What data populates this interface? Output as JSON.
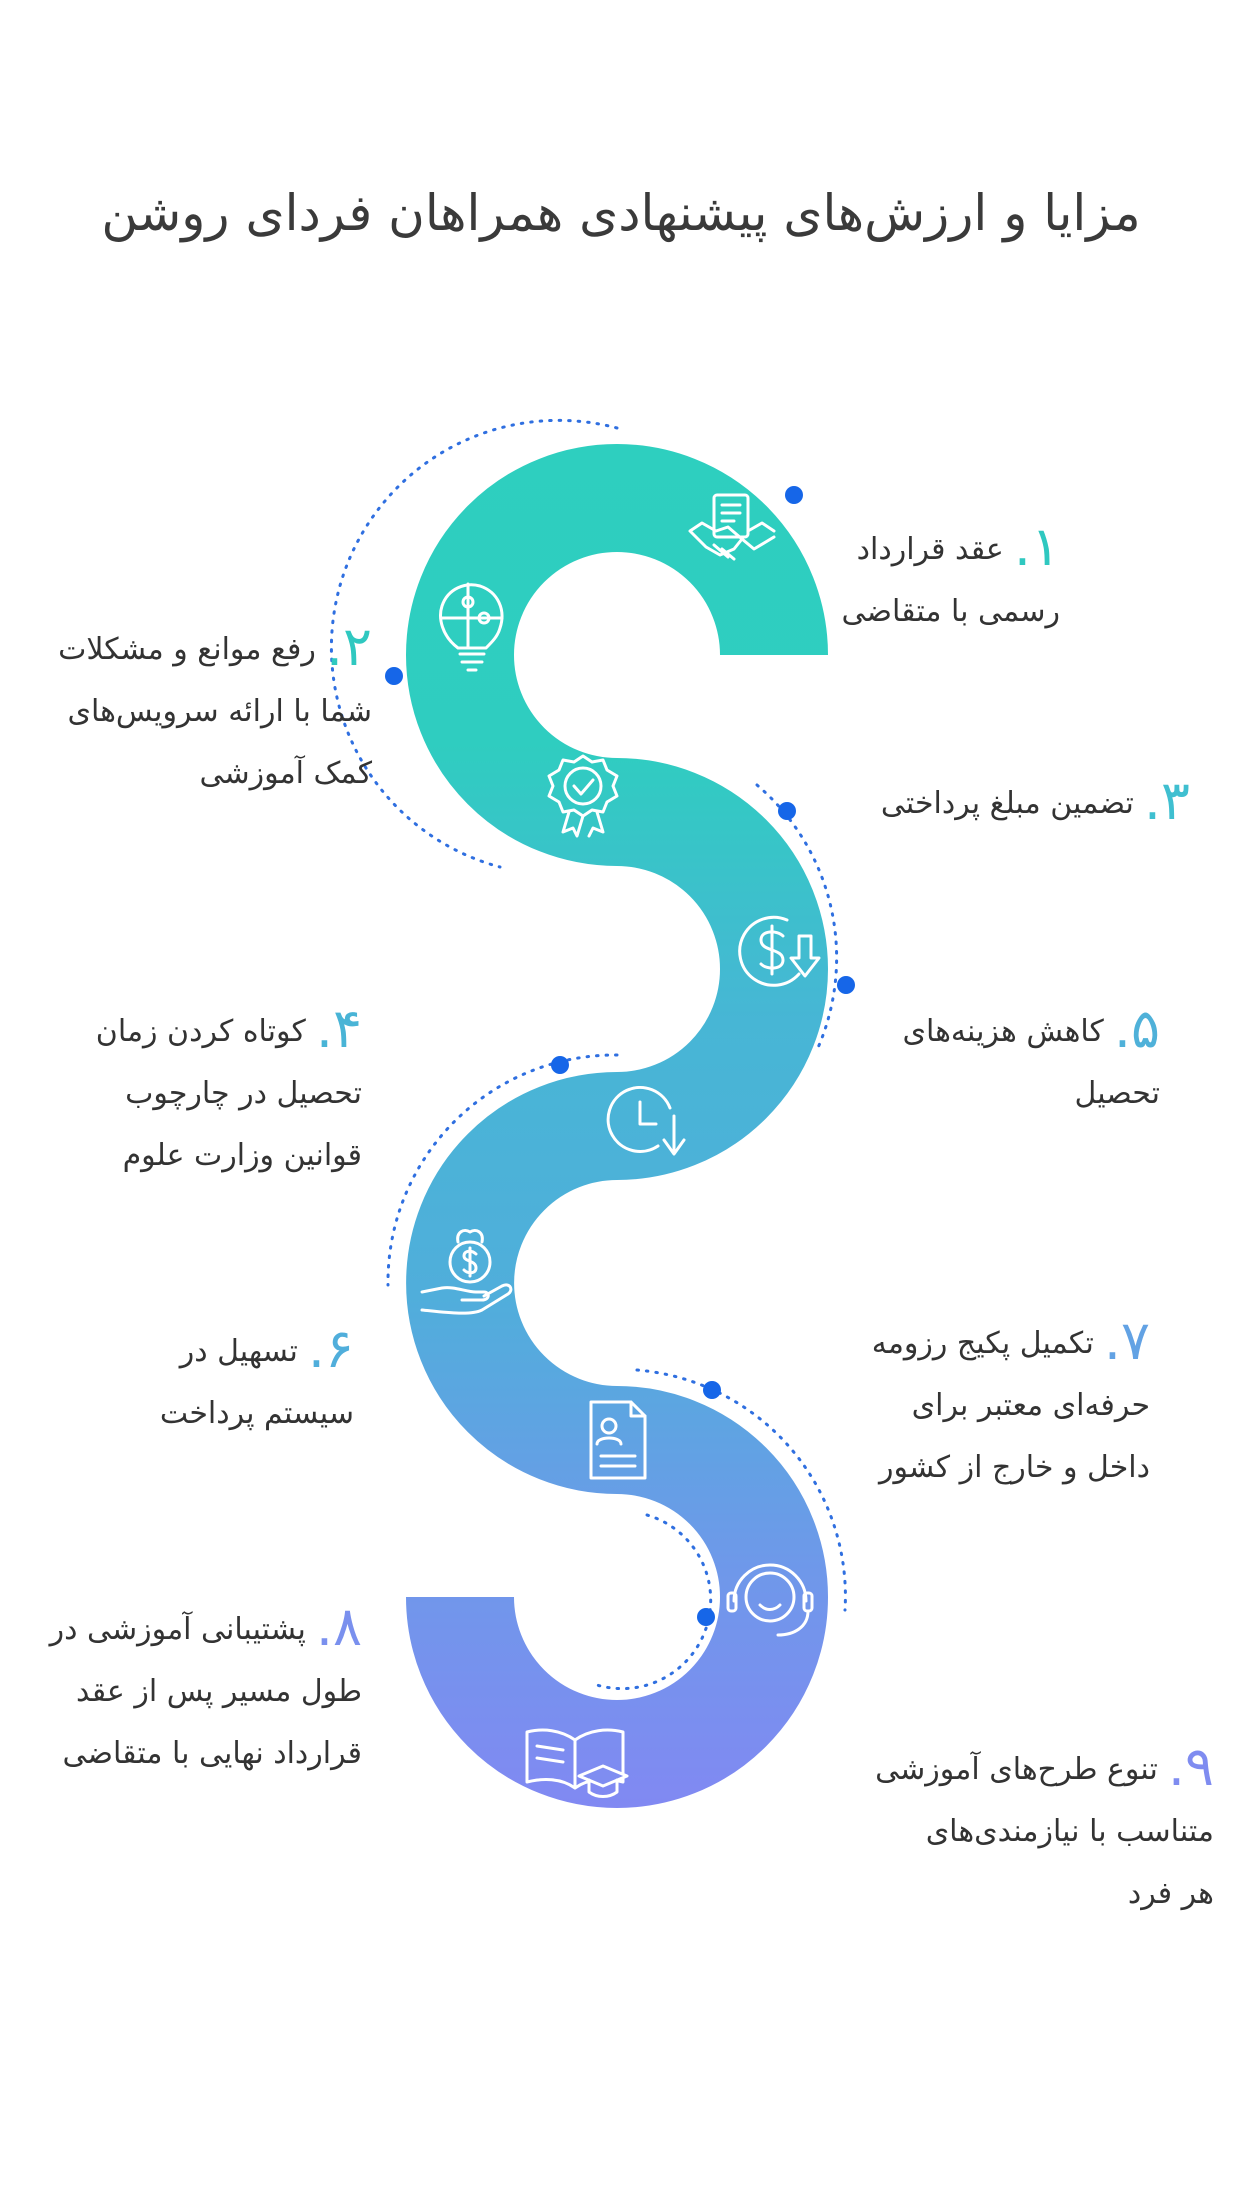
{
  "title": "مزایا و ارزش‌های پیشنهادی همراهان فردای روشن",
  "colors": {
    "teal": "#2ecfbf",
    "mid": "#4bb0d8",
    "violet": "#8088f2",
    "dot": "#1666e8",
    "dotted_line": "#2f6fe0",
    "number_teal": "#2fc8c0",
    "number_blue": "#5ab6d8",
    "number_violet": "#7f8cf0"
  },
  "items": [
    {
      "num": "۱.",
      "lines": [
        "عقد قرارداد",
        "رسمی با متقاضی"
      ]
    },
    {
      "num": "۲.",
      "lines": [
        "رفع موانع و مشکلات",
        "شما با ارائه سرویس‌های",
        "کمک آموزشی"
      ]
    },
    {
      "num": "۳.",
      "lines": [
        "تضمین مبلغ پرداختی"
      ]
    },
    {
      "num": "۴.",
      "lines": [
        "کوتاه کردن زمان",
        "تحصیل در چارچوب",
        "قوانین وزارت علوم"
      ]
    },
    {
      "num": "۵.",
      "lines": [
        "کاهش هزینه‌های",
        "تحصیل"
      ]
    },
    {
      "num": "۶.",
      "lines": [
        "تسهیل در",
        "سیستم پرداخت"
      ]
    },
    {
      "num": "۷.",
      "lines": [
        "تکمیل پکیج رزومه",
        "حرفه‌ای معتبر برای",
        "داخل و خارج از کشور"
      ]
    },
    {
      "num": "۸.",
      "lines": [
        "پشتیبانی آموزشی در",
        "طول مسیر پس از عقد",
        "قرارداد نهایی با متقاضی"
      ]
    },
    {
      "num": "۹.",
      "lines": [
        "تنوع طرح‌های آموزشی",
        "متناسب با نیازمندی‌های",
        "هر فرد"
      ]
    }
  ],
  "icons": [
    "handshake-document-icon",
    "puzzle-lightbulb-icon",
    "certificate-badge-icon",
    "dollar-decrease-icon",
    "clock-down-icon",
    "hand-money-bag-icon",
    "resume-document-icon",
    "headset-support-icon",
    "book-graduation-cap-icon"
  ]
}
